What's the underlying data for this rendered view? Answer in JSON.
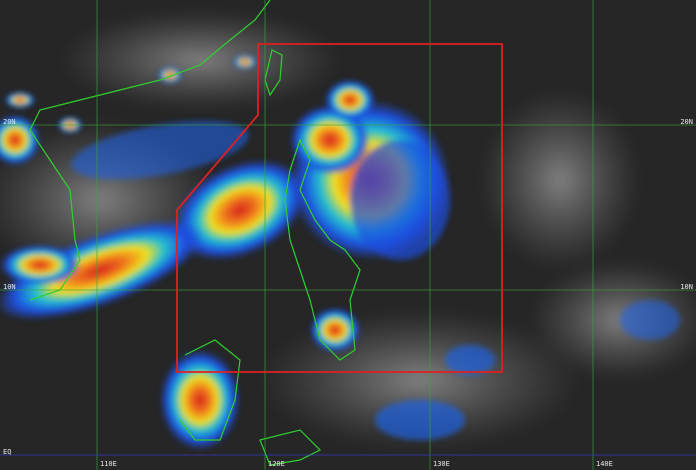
{
  "latitude_labels": [
    "20N",
    "10N",
    "EQ"
  ],
  "longitude_labels": [
    "110E",
    "120E",
    "130E",
    "140E"
  ]
}
